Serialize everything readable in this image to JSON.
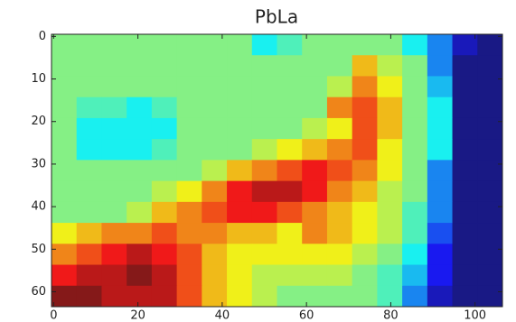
{
  "chart_data": {
    "type": "heatmap",
    "title": "PbLa",
    "colormap": "jet",
    "xlim": [
      -0.5,
      106.5
    ],
    "ylim": [
      63.5,
      -0.5
    ],
    "xticks": [
      0,
      20,
      40,
      60,
      80,
      100
    ],
    "yticks": [
      0,
      10,
      20,
      30,
      40,
      50,
      60
    ],
    "z": [
      [
        5,
        5,
        5,
        5,
        5,
        5,
        5,
        5,
        4,
        4.5,
        5,
        5,
        5,
        5,
        4,
        3,
        1.5,
        1
      ],
      [
        5,
        5,
        5,
        5,
        5,
        5,
        5,
        5,
        5,
        5,
        5,
        5,
        6.5,
        5.5,
        5,
        3,
        1,
        1
      ],
      [
        5,
        5,
        5,
        5,
        5,
        5,
        5,
        5,
        5,
        5,
        5,
        5.5,
        7,
        6,
        5,
        3.5,
        1,
        1
      ],
      [
        5,
        4.5,
        4.5,
        4,
        4.5,
        5,
        5,
        5,
        5,
        5,
        5,
        7,
        7.5,
        6.5,
        5,
        4,
        1,
        1
      ],
      [
        5,
        4,
        4,
        4,
        4,
        5,
        5,
        5,
        5,
        5,
        5.5,
        6,
        7.5,
        6.5,
        5,
        4,
        1,
        1
      ],
      [
        5,
        4,
        4,
        4,
        4.5,
        5,
        5,
        5,
        5.5,
        6,
        6.5,
        7,
        7.5,
        6,
        5,
        4,
        1,
        1
      ],
      [
        5,
        5,
        5,
        5,
        5,
        5,
        5.5,
        6.5,
        7,
        7.5,
        8,
        7.5,
        7,
        6,
        5,
        3,
        1,
        1
      ],
      [
        5,
        5,
        5,
        5,
        5.5,
        6,
        7,
        8,
        8.5,
        8.5,
        8,
        7,
        6.5,
        5.5,
        5,
        3,
        1,
        1
      ],
      [
        5,
        5,
        5,
        5.5,
        6.5,
        7,
        7.5,
        8,
        8,
        7.5,
        7,
        6.5,
        6,
        5.5,
        4.5,
        3,
        1,
        1
      ],
      [
        6,
        6.5,
        7,
        7,
        7.5,
        7,
        7,
        6.5,
        6.5,
        6,
        7,
        6.5,
        6,
        5.5,
        4.5,
        2.5,
        1,
        1
      ],
      [
        7,
        7.5,
        8,
        8.5,
        8,
        7.5,
        6.5,
        6,
        6,
        6,
        6,
        6,
        5.5,
        5,
        4,
        2,
        1,
        1
      ],
      [
        8,
        8.5,
        8.5,
        9,
        8.5,
        7.5,
        6.5,
        6,
        5.5,
        5.5,
        5.5,
        5.5,
        5,
        4.5,
        3.5,
        2,
        1,
        1
      ],
      [
        9,
        9,
        8.5,
        8.5,
        8.5,
        7.5,
        6.5,
        6,
        5.5,
        5,
        5,
        5,
        5,
        4.5,
        3,
        1.5,
        1,
        1
      ]
    ]
  }
}
